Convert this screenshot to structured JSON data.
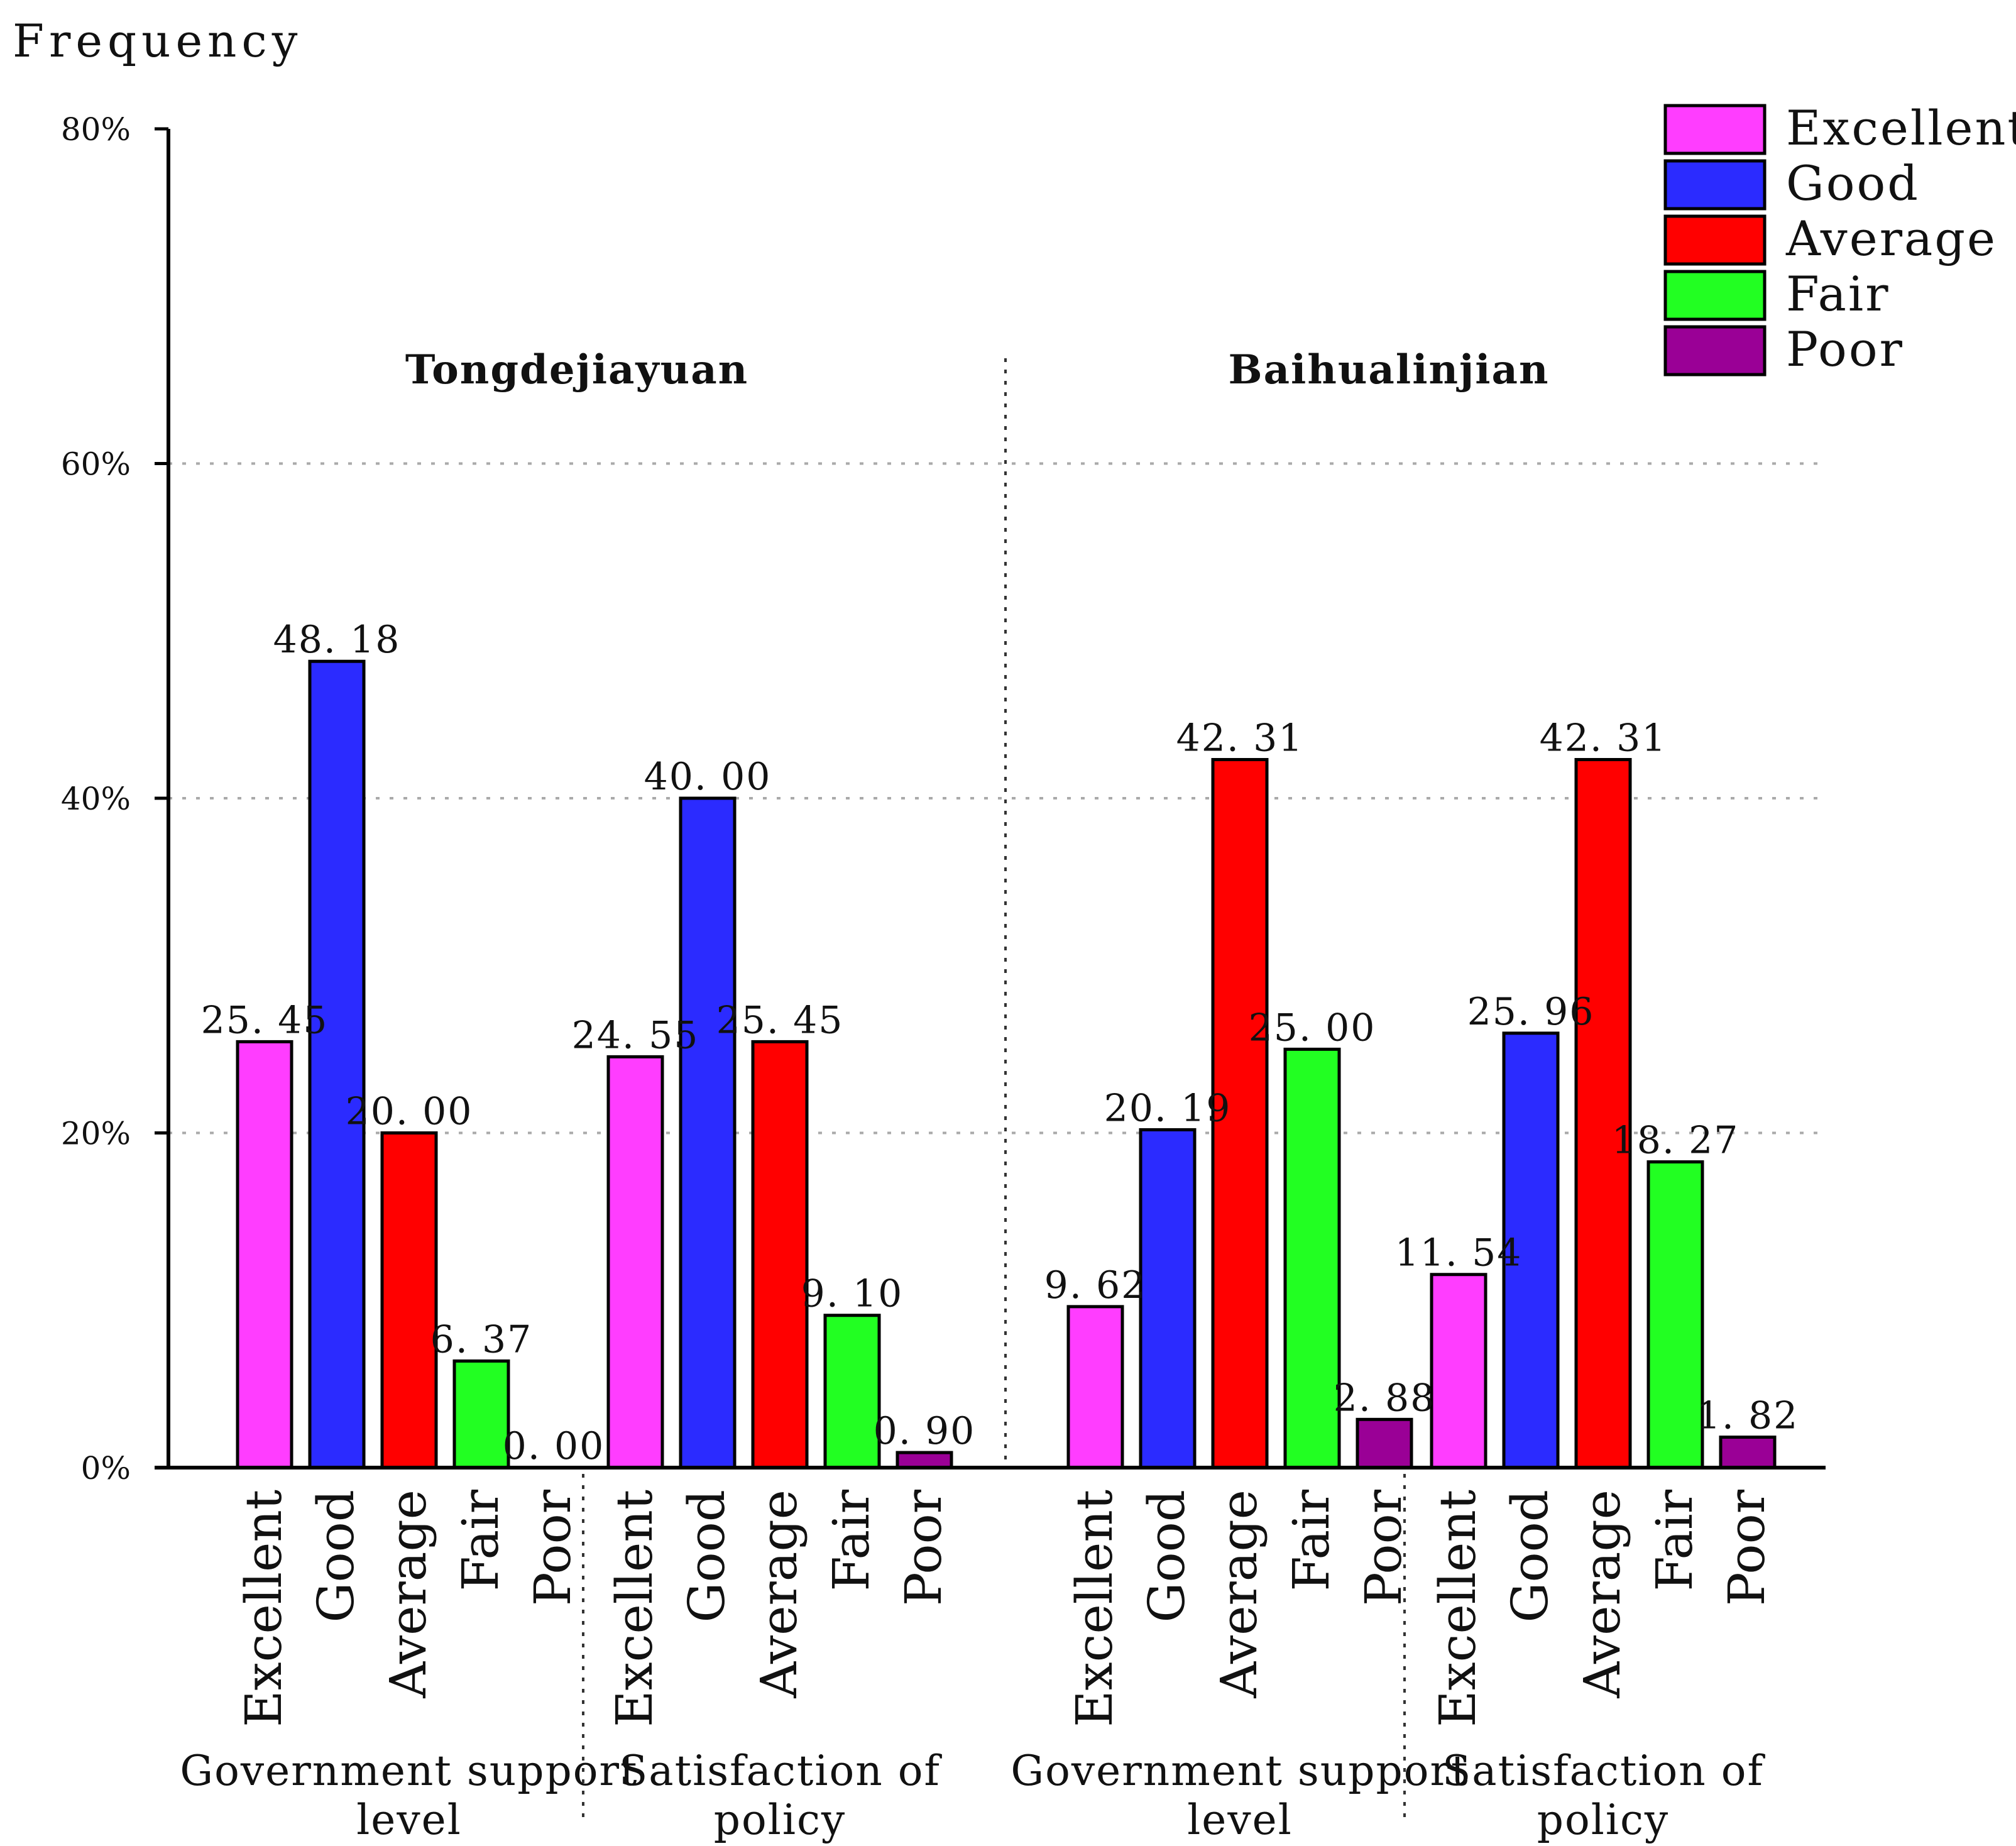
{
  "chart_data": {
    "type": "bar",
    "ylabel": "Frequency",
    "ylim": [
      0,
      80
    ],
    "yticks": [
      "0%",
      "20%",
      "40%",
      "60%",
      "80%"
    ],
    "grid": true,
    "legend_position": "top-right",
    "legend": [
      "Excellent",
      "Good",
      "Average",
      "Fair",
      "Poor"
    ],
    "colors": {
      "Excellent": "#ff3dff",
      "Good": "#2b2bff",
      "Average": "#ff0000",
      "Fair": "#22ff22",
      "Poor": "#9a0096"
    },
    "categories": [
      "Excellent",
      "Good",
      "Average",
      "Fair",
      "Poor"
    ],
    "sites": [
      {
        "name": "Tongdejiayuan",
        "groups": [
          {
            "name_line1": "Government support",
            "name_line2": "level",
            "values": [
              25.45,
              48.18,
              20.0,
              6.37,
              0.0
            ],
            "labels": [
              "25. 45",
              "48. 18",
              "20. 00",
              "6. 37",
              "0. 00"
            ]
          },
          {
            "name_line1": "Satisfaction of",
            "name_line2": "policy",
            "values": [
              24.55,
              40.0,
              25.45,
              9.1,
              0.9
            ],
            "labels": [
              "24. 55",
              "40. 00",
              "25. 45",
              "9. 10",
              "0. 90"
            ]
          }
        ]
      },
      {
        "name": "Baihualinjian",
        "groups": [
          {
            "name_line1": "Government support",
            "name_line2": "level",
            "values": [
              9.62,
              20.19,
              42.31,
              25.0,
              2.88
            ],
            "labels": [
              "9. 62",
              "20. 19",
              "42. 31",
              "25. 00",
              "2. 88"
            ]
          },
          {
            "name_line1": "Satisfaction of",
            "name_line2": "policy",
            "values": [
              11.54,
              25.96,
              42.31,
              18.27,
              1.82
            ],
            "labels": [
              "11. 54",
              "25. 96",
              "42. 31",
              "18. 27",
              "1. 82"
            ]
          }
        ]
      }
    ]
  }
}
